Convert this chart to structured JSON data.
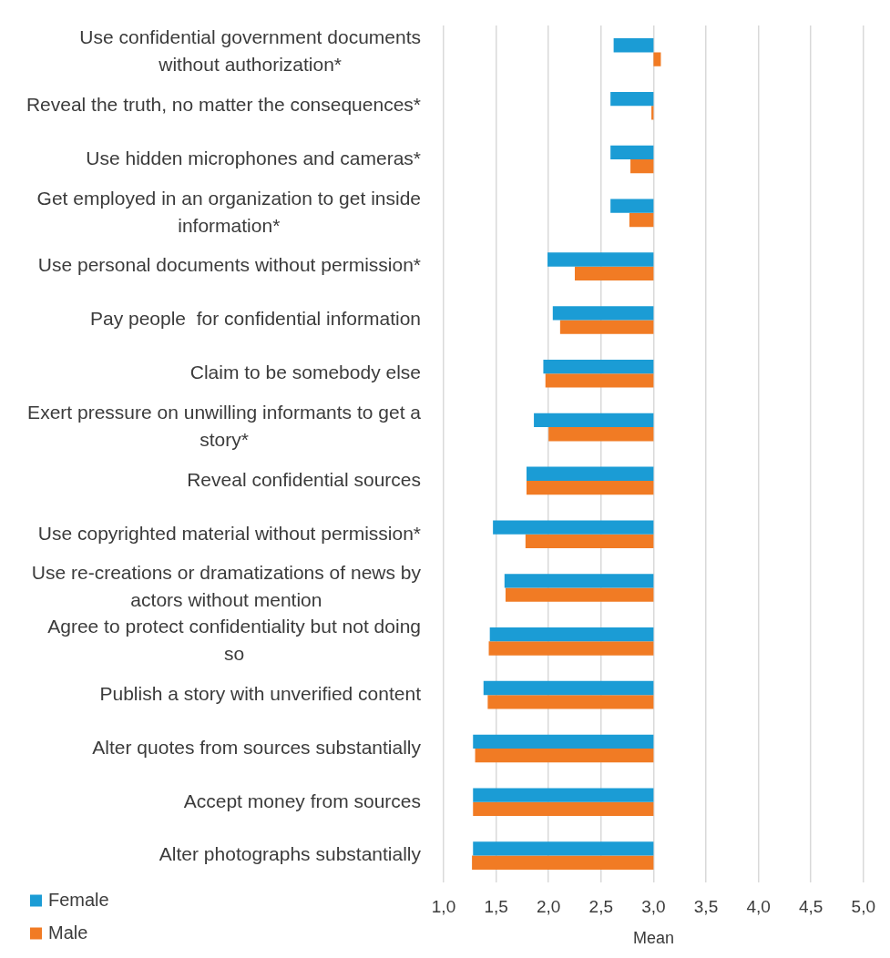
{
  "chart_data": {
    "type": "bar",
    "orientation": "horizontal",
    "xlabel": "Mean",
    "categories": [
      "Use confidential government documents without authorization*",
      "Reveal the truth, no matter the consequences*",
      "Use hidden microphones and cameras*",
      "Get employed in an organization to get inside information*",
      "Use personal documents without permission*",
      "Pay people  for confidential information",
      "Claim to be somebody else",
      "Exert pressure on unwilling informants to get a story*",
      "Reveal confidential sources",
      "Use copyrighted material without permission*",
      "Use re-creations or dramatizations of news by actors without mention",
      "Agree to protect confidentiality but not doing so",
      "Publish a story with unverified content",
      "Alter quotes from sources substantially",
      "Accept money from sources",
      "Alter photographs substantially"
    ],
    "series": [
      {
        "name": "Female",
        "color": "#1b9cd5",
        "base": [
          3,
          3,
          3,
          3,
          3,
          3,
          3,
          3,
          3,
          3,
          3,
          3,
          3,
          3,
          3,
          3
        ],
        "values": [
          -0.38,
          -0.41,
          -0.41,
          -0.41,
          -1.01,
          -0.96,
          -1.05,
          -1.14,
          -1.21,
          -1.53,
          -1.42,
          -1.56,
          -1.62,
          -1.72,
          -1.72,
          -1.72
        ]
      },
      {
        "name": "Male",
        "color": "#f17b24",
        "base": [
          3,
          3,
          3,
          3,
          3,
          3,
          3,
          3,
          3,
          3,
          3,
          3,
          3,
          3,
          3,
          3
        ],
        "values": [
          0.07,
          -0.02,
          -0.22,
          -0.23,
          -0.75,
          -0.89,
          -1.03,
          -1.0,
          -1.21,
          -1.22,
          -1.41,
          -1.57,
          -1.58,
          -1.7,
          -1.72,
          -1.73
        ]
      }
    ],
    "xlim": [
      1,
      5
    ],
    "xticks": [
      {
        "value": 1,
        "label": "1,0"
      },
      {
        "value": 1.5,
        "label": "1,5"
      },
      {
        "value": 2,
        "label": "2,0"
      },
      {
        "value": 2.5,
        "label": "2,5"
      },
      {
        "value": 3,
        "label": "3,0"
      },
      {
        "value": 3.5,
        "label": "3,5"
      },
      {
        "value": 4,
        "label": "4,0"
      },
      {
        "value": 4.5,
        "label": "4,5"
      },
      {
        "value": 5,
        "label": "5,0"
      }
    ],
    "grid": "x",
    "legend": "bottom left"
  }
}
